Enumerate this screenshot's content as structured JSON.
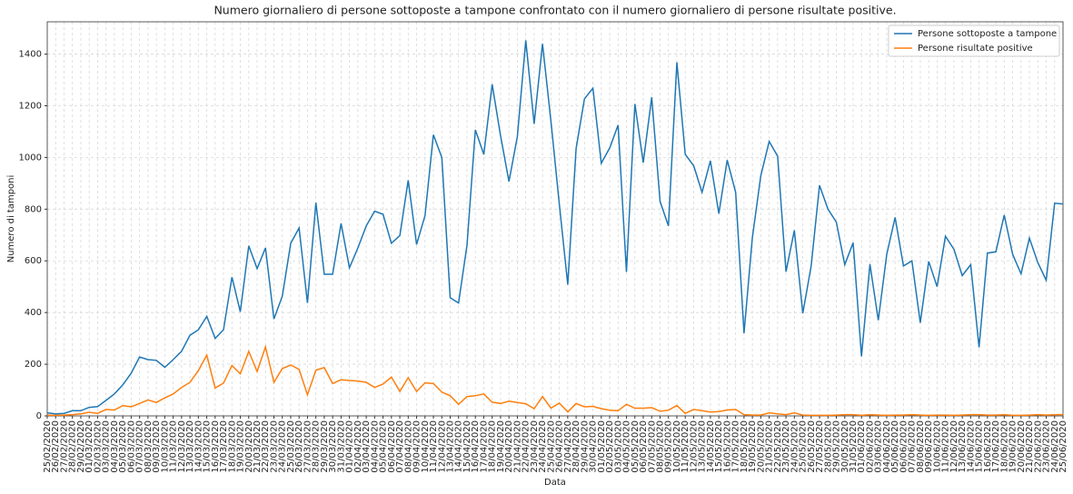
{
  "chart_data": {
    "type": "line",
    "title": "Numero giornaliero di persone sottoposte a tampone confrontato con il numero giornaliero di persone risultate positive.",
    "x_label": "Data",
    "y_label": "Numero di tamponi",
    "categories": [
      "25/02/2020",
      "26/02/2020",
      "27/02/2020",
      "28/02/2020",
      "29/02/2020",
      "01/03/2020",
      "02/03/2020",
      "03/03/2020",
      "04/03/2020",
      "05/03/2020",
      "06/03/2020",
      "07/03/2020",
      "08/03/2020",
      "09/03/2020",
      "10/03/2020",
      "11/03/2020",
      "12/03/2020",
      "13/03/2020",
      "14/03/2020",
      "15/03/2020",
      "16/03/2020",
      "17/03/2020",
      "18/03/2020",
      "19/03/2020",
      "20/03/2020",
      "21/03/2020",
      "22/03/2020",
      "23/03/2020",
      "24/03/2020",
      "25/03/2020",
      "26/03/2020",
      "27/03/2020",
      "28/03/2020",
      "29/03/2020",
      "30/03/2020",
      "31/03/2020",
      "01/04/2020",
      "02/04/2020",
      "03/04/2020",
      "04/04/2020",
      "05/04/2020",
      "06/04/2020",
      "07/04/2020",
      "08/04/2020",
      "09/04/2020",
      "10/04/2020",
      "11/04/2020",
      "12/04/2020",
      "13/04/2020",
      "14/04/2020",
      "15/04/2020",
      "16/04/2020",
      "17/04/2020",
      "18/04/2020",
      "19/04/2020",
      "20/04/2020",
      "21/04/2020",
      "22/04/2020",
      "23/04/2020",
      "24/04/2020",
      "25/04/2020",
      "26/04/2020",
      "27/04/2020",
      "28/04/2020",
      "29/04/2020",
      "30/04/2020",
      "01/05/2020",
      "02/05/2020",
      "03/05/2020",
      "04/05/2020",
      "05/05/2020",
      "06/05/2020",
      "07/05/2020",
      "08/05/2020",
      "09/05/2020",
      "10/05/2020",
      "11/05/2020",
      "12/05/2020",
      "13/05/2020",
      "14/05/2020",
      "15/05/2020",
      "16/05/2020",
      "17/05/2020",
      "18/05/2020",
      "19/05/2020",
      "20/05/2020",
      "21/05/2020",
      "22/05/2020",
      "23/05/2020",
      "24/05/2020",
      "25/05/2020",
      "26/05/2020",
      "27/05/2020",
      "28/05/2020",
      "29/05/2020",
      "30/05/2020",
      "31/05/2020",
      "01/06/2020",
      "02/06/2020",
      "03/06/2020",
      "04/06/2020",
      "05/06/2020",
      "06/06/2020",
      "07/06/2020",
      "08/06/2020",
      "09/06/2020",
      "10/06/2020",
      "11/06/2020",
      "12/06/2020",
      "13/06/2020",
      "14/06/2020",
      "15/06/2020",
      "16/06/2020",
      "17/06/2020",
      "18/06/2020",
      "19/06/2020",
      "20/06/2020",
      "21/06/2020",
      "22/06/2020",
      "23/06/2020",
      "24/06/2020",
      "25/06/2020"
    ],
    "series": [
      {
        "name": "Persone sottoposte a tampone",
        "color": "#1f77b4",
        "values": [
          12,
          8,
          10,
          20,
          20,
          33,
          36,
          60,
          85,
          120,
          165,
          228,
          218,
          215,
          188,
          218,
          250,
          312,
          333,
          385,
          300,
          333,
          537,
          403,
          658,
          570,
          650,
          375,
          463,
          668,
          727,
          437,
          825,
          548,
          548,
          745,
          573,
          650,
          735,
          792,
          780,
          668,
          698,
          912,
          663,
          775,
          1088,
          1000,
          457,
          437,
          660,
          1107,
          1012,
          1283,
          1085,
          907,
          1080,
          1453,
          1130,
          1440,
          1140,
          820,
          508,
          1035,
          1227,
          1268,
          978,
          1037,
          1125,
          557,
          1207,
          980,
          1233,
          830,
          735,
          1368,
          1012,
          968,
          865,
          987,
          783,
          990,
          865,
          320,
          690,
          930,
          1062,
          1005,
          558,
          718,
          397,
          580,
          892,
          800,
          750,
          585,
          670,
          230,
          587,
          370,
          625,
          768,
          580,
          600,
          360,
          598,
          500,
          695,
          645,
          543,
          585,
          265,
          630,
          635,
          777,
          625,
          550,
          688,
          593,
          525,
          823,
          820
        ]
      },
      {
        "name": "Persone risultate positive",
        "color": "#ff7f0e",
        "values": [
          3,
          2,
          3,
          5,
          8,
          14,
          10,
          25,
          23,
          40,
          35,
          48,
          62,
          52,
          70,
          85,
          110,
          130,
          175,
          235,
          108,
          127,
          195,
          163,
          250,
          172,
          267,
          130,
          183,
          197,
          180,
          82,
          177,
          187,
          125,
          140,
          137,
          135,
          130,
          110,
          123,
          150,
          95,
          148,
          95,
          128,
          125,
          92,
          78,
          45,
          75,
          78,
          85,
          53,
          48,
          57,
          52,
          47,
          28,
          75,
          30,
          50,
          15,
          48,
          35,
          37,
          28,
          22,
          20,
          45,
          30,
          30,
          32,
          18,
          22,
          40,
          10,
          25,
          20,
          15,
          17,
          23,
          25,
          5,
          3,
          3,
          12,
          8,
          5,
          12,
          3,
          2,
          2,
          2,
          3,
          5,
          5,
          2,
          5,
          3,
          2,
          3,
          3,
          5,
          3,
          2,
          3,
          3,
          2,
          3,
          5,
          5,
          3,
          3,
          5,
          2,
          2,
          3,
          5,
          3,
          5,
          5
        ]
      }
    ],
    "ylim": [
      0,
      1525
    ],
    "yticks": [
      0,
      200,
      400,
      600,
      800,
      1000,
      1200,
      1400
    ],
    "grid": true,
    "legend": "upper right"
  }
}
